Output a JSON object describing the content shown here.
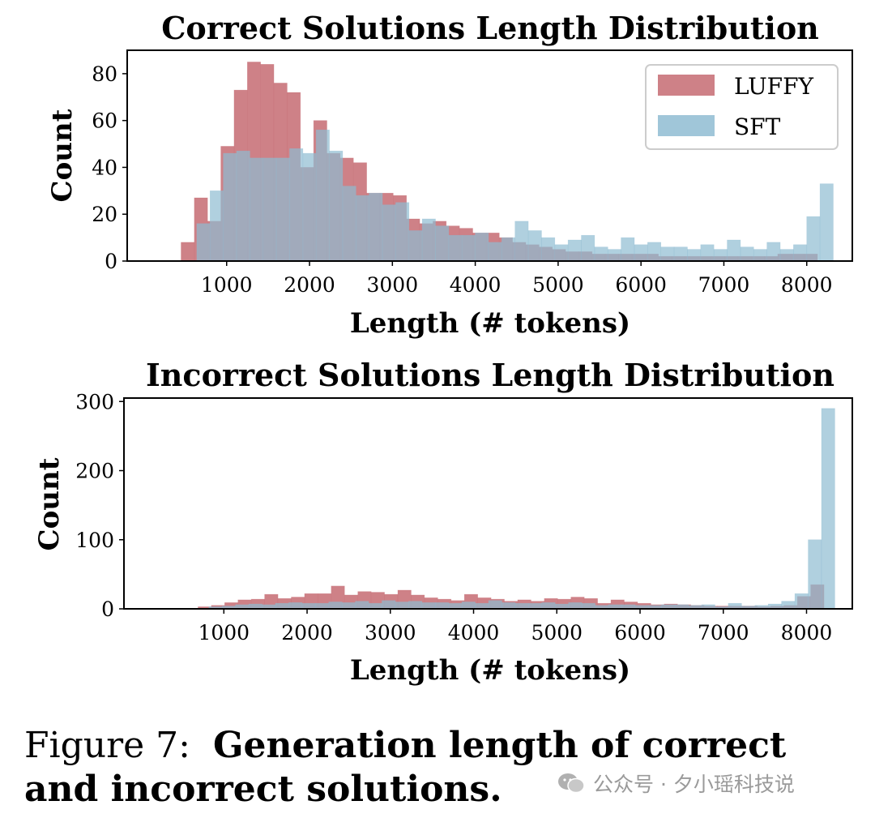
{
  "chart_data": [
    {
      "type": "bar",
      "title": "Correct Solutions Length Distribution",
      "xlabel": "Length (# tokens)",
      "ylabel": "Count",
      "xlim": [
        -200,
        8550
      ],
      "ylim": [
        0,
        90
      ],
      "xticks": [
        1000,
        2000,
        3000,
        4000,
        5000,
        6000,
        7000,
        8000
      ],
      "yticks": [
        0,
        20,
        40,
        60,
        80
      ],
      "grid": false,
      "legend": {
        "placement": "top-right"
      },
      "series": [
        {
          "name": "LUFFY",
          "color": "#c56b72",
          "bins": [
            [
              450,
              610,
              8
            ],
            [
              610,
              770,
              27
            ],
            [
              770,
              930,
              17
            ],
            [
              930,
              1090,
              49
            ],
            [
              1090,
              1250,
              73
            ],
            [
              1250,
              1410,
              85
            ],
            [
              1410,
              1570,
              84
            ],
            [
              1570,
              1730,
              76
            ],
            [
              1730,
              1890,
              72
            ],
            [
              1890,
              2050,
              40
            ],
            [
              2050,
              2210,
              60
            ],
            [
              2210,
              2370,
              46
            ],
            [
              2370,
              2530,
              44
            ],
            [
              2530,
              2690,
              42
            ],
            [
              2690,
              2850,
              29
            ],
            [
              2850,
              3010,
              29
            ],
            [
              3010,
              3170,
              28
            ],
            [
              3170,
              3330,
              18
            ],
            [
              3330,
              3490,
              16
            ],
            [
              3490,
              3650,
              17
            ],
            [
              3650,
              3810,
              15
            ],
            [
              3810,
              3970,
              14
            ],
            [
              3970,
              4130,
              12
            ],
            [
              4130,
              4290,
              12
            ],
            [
              4290,
              4450,
              10
            ],
            [
              4450,
              4610,
              8
            ],
            [
              4610,
              4770,
              7
            ],
            [
              4770,
              4930,
              6
            ],
            [
              4930,
              5090,
              5
            ],
            [
              5090,
              5250,
              4
            ],
            [
              5250,
              5410,
              4
            ],
            [
              5410,
              5570,
              3
            ],
            [
              5570,
              5730,
              3
            ],
            [
              5730,
              5890,
              3
            ],
            [
              5890,
              6050,
              3
            ],
            [
              6050,
              6210,
              3
            ],
            [
              6210,
              6370,
              2
            ],
            [
              6370,
              6530,
              2
            ],
            [
              6530,
              6690,
              2
            ],
            [
              6690,
              6850,
              2
            ],
            [
              6850,
              7010,
              2
            ],
            [
              7010,
              7170,
              2
            ],
            [
              7170,
              7330,
              2
            ],
            [
              7330,
              7490,
              2
            ],
            [
              7490,
              7650,
              2
            ],
            [
              7650,
              7810,
              3
            ],
            [
              7810,
              7970,
              3
            ],
            [
              7970,
              8130,
              3
            ]
          ]
        },
        {
          "name": "SFT",
          "color": "#8fbcd2",
          "bins": [
            [
              640,
              800,
              16
            ],
            [
              800,
              960,
              30
            ],
            [
              960,
              1120,
              46
            ],
            [
              1120,
              1280,
              47
            ],
            [
              1280,
              1440,
              44
            ],
            [
              1440,
              1600,
              44
            ],
            [
              1600,
              1760,
              44
            ],
            [
              1760,
              1920,
              48
            ],
            [
              1920,
              2080,
              46
            ],
            [
              2080,
              2240,
              56
            ],
            [
              2240,
              2400,
              47
            ],
            [
              2400,
              2560,
              32
            ],
            [
              2560,
              2720,
              28
            ],
            [
              2720,
              2880,
              29
            ],
            [
              2880,
              3040,
              24
            ],
            [
              3040,
              3200,
              25
            ],
            [
              3200,
              3360,
              13
            ],
            [
              3360,
              3520,
              18
            ],
            [
              3520,
              3680,
              15
            ],
            [
              3680,
              3840,
              11
            ],
            [
              3840,
              4000,
              11
            ],
            [
              4000,
              4160,
              12
            ],
            [
              4160,
              4320,
              8
            ],
            [
              4320,
              4480,
              10
            ],
            [
              4480,
              4640,
              17
            ],
            [
              4640,
              4800,
              13
            ],
            [
              4800,
              4960,
              10
            ],
            [
              4960,
              5120,
              7
            ],
            [
              5120,
              5280,
              9
            ],
            [
              5280,
              5440,
              11
            ],
            [
              5440,
              5600,
              6
            ],
            [
              5600,
              5760,
              5
            ],
            [
              5760,
              5920,
              10
            ],
            [
              5920,
              6080,
              7
            ],
            [
              6080,
              6240,
              8
            ],
            [
              6240,
              6400,
              6
            ],
            [
              6400,
              6560,
              6
            ],
            [
              6560,
              6720,
              5
            ],
            [
              6720,
              6880,
              7
            ],
            [
              6880,
              7040,
              5
            ],
            [
              7040,
              7200,
              9
            ],
            [
              7200,
              7360,
              6
            ],
            [
              7360,
              7520,
              5
            ],
            [
              7520,
              7680,
              8
            ],
            [
              7680,
              7840,
              5
            ],
            [
              7840,
              8000,
              7
            ],
            [
              8000,
              8160,
              19
            ],
            [
              8160,
              8320,
              33
            ]
          ]
        }
      ]
    },
    {
      "type": "bar",
      "title": "Incorrect Solutions Length Distribution",
      "xlabel": "Length (# tokens)",
      "ylabel": "Count",
      "xlim": [
        -200,
        8550
      ],
      "ylim": [
        0,
        305
      ],
      "xticks": [
        1000,
        2000,
        3000,
        4000,
        5000,
        6000,
        7000,
        8000
      ],
      "yticks": [
        0,
        100,
        200,
        300
      ],
      "grid": false,
      "legend": null,
      "series": [
        {
          "name": "LUFFY",
          "color": "#c56b72",
          "bins": [
            [
              690,
              850,
              3
            ],
            [
              850,
              1010,
              5
            ],
            [
              1010,
              1170,
              9
            ],
            [
              1170,
              1330,
              13
            ],
            [
              1330,
              1490,
              14
            ],
            [
              1490,
              1650,
              21
            ],
            [
              1650,
              1810,
              15
            ],
            [
              1810,
              1970,
              17
            ],
            [
              1970,
              2130,
              22
            ],
            [
              2130,
              2290,
              22
            ],
            [
              2290,
              2450,
              33
            ],
            [
              2450,
              2610,
              20
            ],
            [
              2610,
              2770,
              25
            ],
            [
              2770,
              2930,
              24
            ],
            [
              2930,
              3090,
              21
            ],
            [
              3090,
              3250,
              27
            ],
            [
              3250,
              3410,
              20
            ],
            [
              3410,
              3570,
              16
            ],
            [
              3570,
              3730,
              14
            ],
            [
              3730,
              3890,
              12
            ],
            [
              3890,
              4050,
              21
            ],
            [
              4050,
              4210,
              16
            ],
            [
              4210,
              4370,
              14
            ],
            [
              4370,
              4530,
              11
            ],
            [
              4530,
              4690,
              13
            ],
            [
              4690,
              4850,
              11
            ],
            [
              4850,
              5010,
              15
            ],
            [
              5010,
              5170,
              14
            ],
            [
              5170,
              5330,
              17
            ],
            [
              5330,
              5490,
              15
            ],
            [
              5490,
              5650,
              8
            ],
            [
              5650,
              5810,
              13
            ],
            [
              5810,
              5970,
              10
            ],
            [
              5970,
              6130,
              8
            ],
            [
              6130,
              6290,
              6
            ],
            [
              6290,
              6450,
              7
            ],
            [
              6450,
              6610,
              6
            ],
            [
              6610,
              6770,
              5
            ],
            [
              6770,
              6930,
              4
            ],
            [
              6930,
              7090,
              4
            ],
            [
              7090,
              7250,
              4
            ],
            [
              7250,
              7410,
              4
            ],
            [
              7410,
              7570,
              3
            ],
            [
              7570,
              7730,
              4
            ],
            [
              7730,
              7890,
              5
            ],
            [
              7890,
              8050,
              18
            ],
            [
              8050,
              8210,
              35
            ]
          ]
        },
        {
          "name": "SFT",
          "color": "#8fbcd2",
          "bins": [
            [
              820,
              980,
              3
            ],
            [
              980,
              1140,
              4
            ],
            [
              1140,
              1300,
              6
            ],
            [
              1300,
              1460,
              7
            ],
            [
              1460,
              1620,
              6
            ],
            [
              1620,
              1780,
              8
            ],
            [
              1780,
              1940,
              9
            ],
            [
              1940,
              2100,
              8
            ],
            [
              2100,
              2260,
              8
            ],
            [
              2260,
              2420,
              10
            ],
            [
              2420,
              2580,
              9
            ],
            [
              2580,
              2740,
              11
            ],
            [
              2740,
              2900,
              8
            ],
            [
              2900,
              3060,
              12
            ],
            [
              3060,
              3220,
              10
            ],
            [
              3220,
              3380,
              11
            ],
            [
              3380,
              3540,
              9
            ],
            [
              3540,
              3700,
              9
            ],
            [
              3700,
              3860,
              8
            ],
            [
              3860,
              4020,
              10
            ],
            [
              4020,
              4180,
              8
            ],
            [
              4180,
              4340,
              12
            ],
            [
              4340,
              4500,
              9
            ],
            [
              4500,
              4660,
              8
            ],
            [
              4660,
              4820,
              8
            ],
            [
              4820,
              4980,
              9
            ],
            [
              4980,
              5140,
              7
            ],
            [
              5140,
              5300,
              9
            ],
            [
              5300,
              5460,
              8
            ],
            [
              5460,
              5620,
              5
            ],
            [
              5620,
              5780,
              6
            ],
            [
              5780,
              5940,
              6
            ],
            [
              5940,
              6100,
              5
            ],
            [
              6100,
              6260,
              5
            ],
            [
              6260,
              6420,
              6
            ],
            [
              6420,
              6580,
              6
            ],
            [
              6580,
              6740,
              5
            ],
            [
              6740,
              6900,
              6
            ],
            [
              6900,
              7060,
              3
            ],
            [
              7060,
              7220,
              8
            ],
            [
              7220,
              7380,
              4
            ],
            [
              7380,
              7540,
              5
            ],
            [
              7540,
              7700,
              7
            ],
            [
              7700,
              7860,
              11
            ],
            [
              7860,
              8020,
              22
            ],
            [
              8020,
              8180,
              100
            ],
            [
              8180,
              8340,
              290
            ]
          ]
        }
      ]
    }
  ],
  "caption": {
    "prefix": "Figure 7:",
    "bold": "Generation length of correct and incorrect solutions."
  },
  "watermark": {
    "logo": "wechat-icon",
    "text": "公众号 · 夕小瑶科技说"
  }
}
